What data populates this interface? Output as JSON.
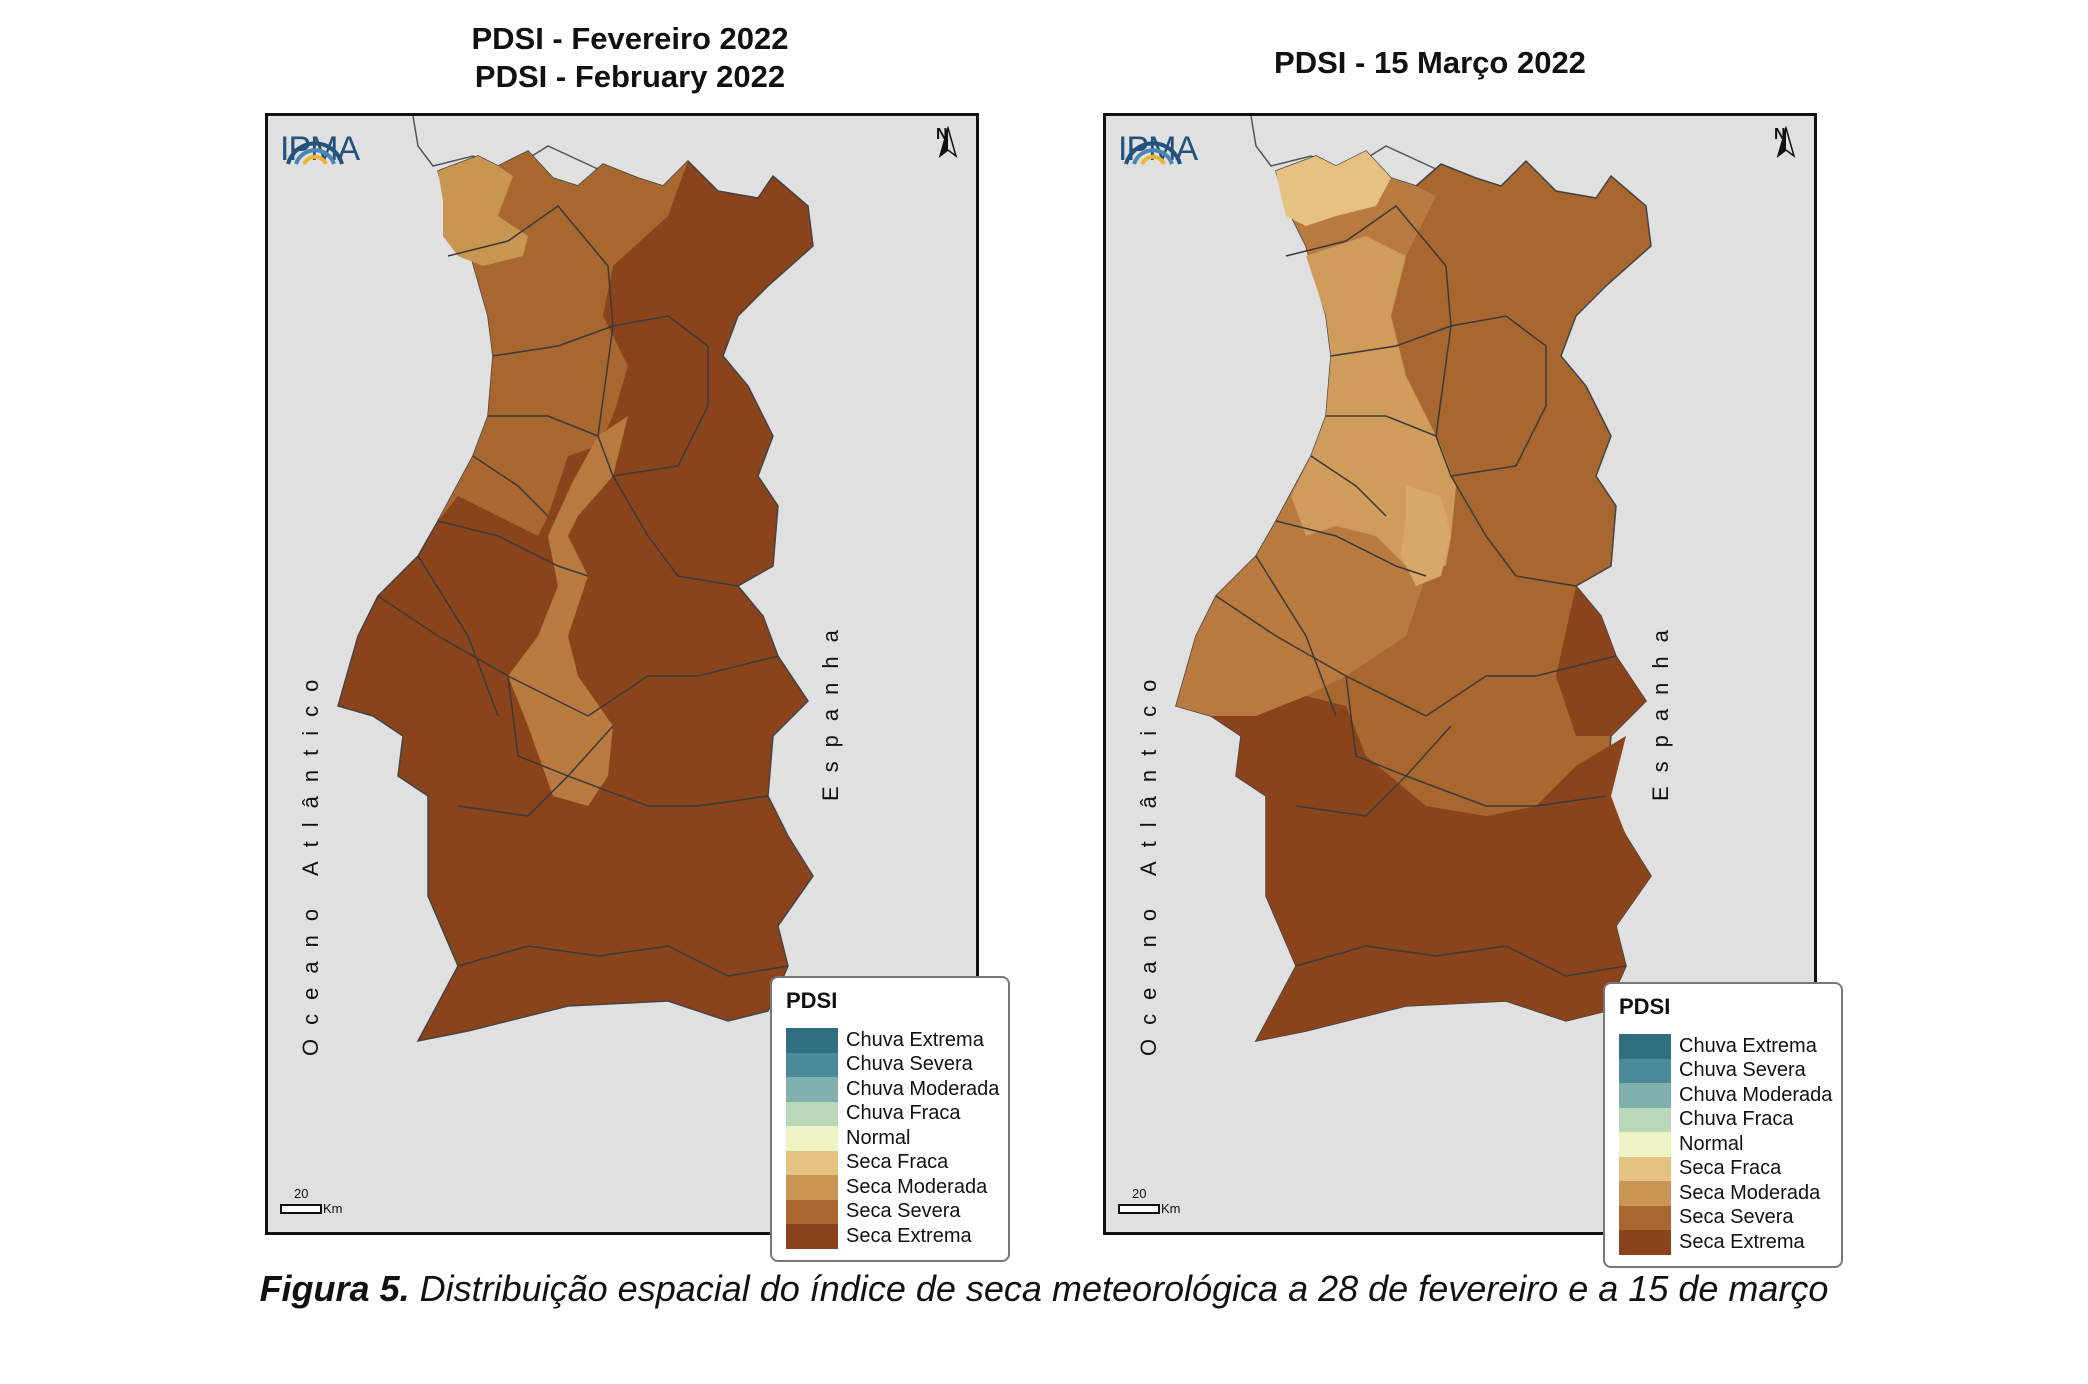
{
  "maps": [
    {
      "title_line1": "PDSI - Fevereiro 2022",
      "title_line2": "PDSI - February 2022",
      "logo": "IPMA",
      "north": "N",
      "ocean_label": "Oceano Atlântico",
      "spain_label": "Espanha",
      "scale_value": "20",
      "scale_unit": "Km",
      "legend_title": "PDSI"
    },
    {
      "title_line1": "PDSI - 15 Março 2022",
      "title_line2": "",
      "logo": "IPMA",
      "north": "N",
      "ocean_label": "Oceano Atlântico",
      "spain_label": "Espanha",
      "scale_value": "20",
      "scale_unit": "Km",
      "legend_title": "PDSI"
    }
  ],
  "legend_classes": [
    {
      "label": "Chuva Extrema",
      "color": "#2f6f80"
    },
    {
      "label": "Chuva Severa",
      "color": "#4b8a98"
    },
    {
      "label": "Chuva Moderada",
      "color": "#7fb0ae"
    },
    {
      "label": "Chuva Fraca",
      "color": "#b9d8b8"
    },
    {
      "label": "Normal",
      "color": "#eef3c4"
    },
    {
      "label": "Seca Fraca",
      "color": "#e6c282"
    },
    {
      "label": "Seca Moderada",
      "color": "#c99553"
    },
    {
      "label": "Seca Severa",
      "color": "#a8672e"
    },
    {
      "label": "Seca Extrema",
      "color": "#8a431b"
    }
  ],
  "caption": {
    "bold": "Figura 5.",
    "text": " Distribuição espacial do índice de seca meteorológica a 28 de fevereiro e a 15 de março"
  },
  "colors": {
    "background_land": "#e0e0e0",
    "ipma_blue": "#23527c",
    "ipma_yellow": "#e8b630"
  }
}
